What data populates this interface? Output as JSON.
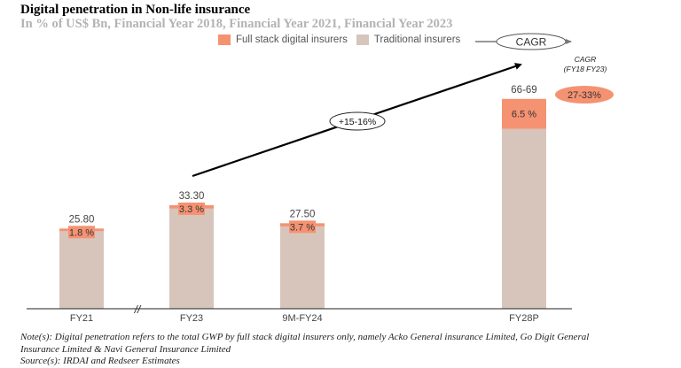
{
  "header": {
    "title": "Digital penetration in Non-life insurance",
    "subtitle": "In % of US$ Bn, Financial Year 2018, Financial Year 2021, Financial Year 2023"
  },
  "legend": {
    "items": [
      {
        "label": "Full stack digital insurers",
        "color": "#f59272"
      },
      {
        "label": "Traditional insurers",
        "color": "#d7c5bb"
      }
    ],
    "cagr_key_label": "CAGR"
  },
  "cagr_annotation": {
    "heading_line1": "CAGR",
    "heading_line2": "(FY18 FY23)",
    "value": "27-33%",
    "arrow_label": "+15-16%"
  },
  "footer": {
    "note_line1": "Note(s): Digital penetration refers to the total GWP by full stack digital insurers only, namely Acko General insurance Limited, Go Digit General",
    "note_line2": "Insurance Limited & Navi General Insurance Limited",
    "source": "Source(s): IRDAI and Redseer Estimates"
  },
  "chart_data": {
    "type": "bar",
    "stacked": true,
    "title": "Digital penetration in Non-life insurance",
    "subtitle": "In % of US$ Bn, Financial Year 2018, Financial Year 2021, Financial Year 2023",
    "xlabel": "",
    "ylabel": "",
    "categories": [
      "FY21",
      "FY23",
      "9M-FY24",
      "FY28P"
    ],
    "totals": [
      25.8,
      33.3,
      27.5,
      67.5
    ],
    "total_labels": [
      "25.80",
      "33.30",
      "27.50",
      "66-69"
    ],
    "series": [
      {
        "name": "Traditional insurers",
        "color": "#d7c5bb",
        "share_percent": [
          98.2,
          96.7,
          96.3,
          93.5
        ]
      },
      {
        "name": "Full stack digital insurers",
        "color": "#f59272",
        "share_percent": [
          1.8,
          3.3,
          3.7,
          6.5
        ],
        "labels": [
          "1.8 %",
          "3.3 %",
          "3.7 %",
          "6.5 %"
        ]
      }
    ],
    "axis_break_between": [
      "FY21",
      "FY23"
    ],
    "axis_break_symbol": "//",
    "ylim": [
      0,
      70
    ],
    "grid": false,
    "legend_position": "top-right",
    "trend_arrow": {
      "from": "FY23",
      "to": "FY28P",
      "label": "+15-16%"
    }
  }
}
